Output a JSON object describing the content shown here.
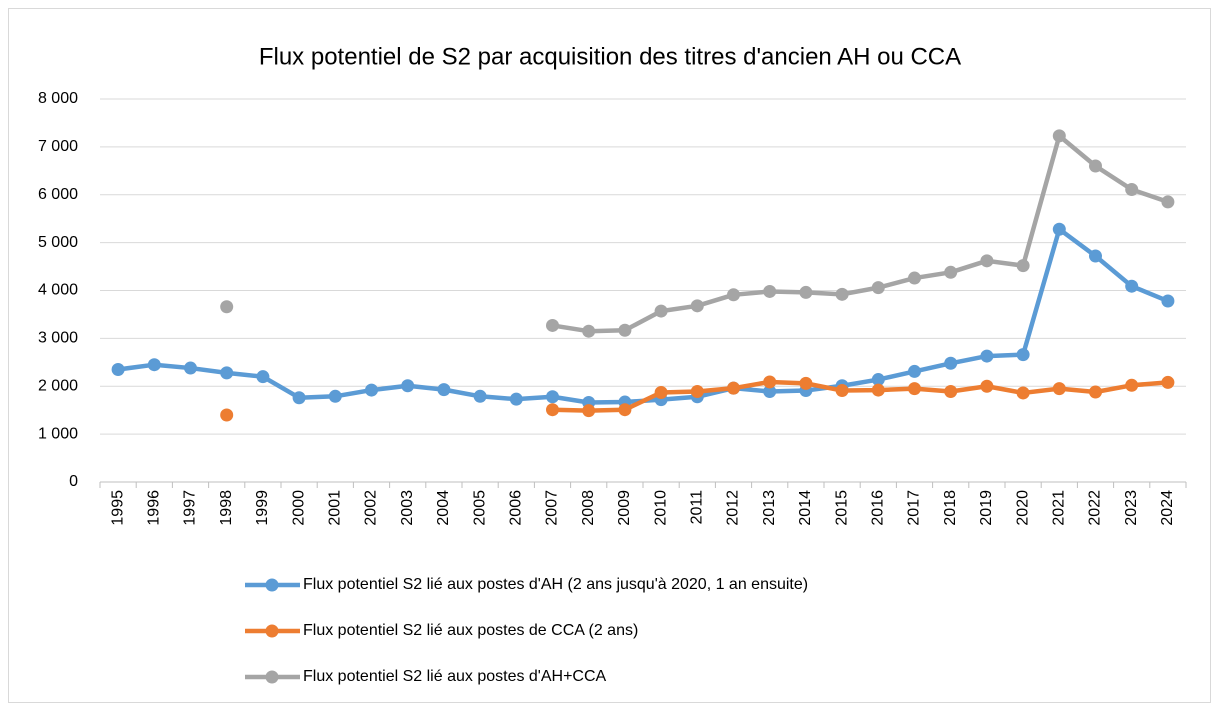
{
  "chart_data": {
    "type": "line",
    "title": "Flux potentiel de S2 par acquisition des titres d'ancien AH ou CCA",
    "categories": [
      "1995",
      "1996",
      "1997",
      "1998",
      "1999",
      "2000",
      "2001",
      "2002",
      "2003",
      "2004",
      "2005",
      "2006",
      "2007",
      "2008",
      "2009",
      "2010",
      "2011",
      "2012",
      "2013",
      "2014",
      "2015",
      "2016",
      "2017",
      "2018",
      "2019",
      "2020",
      "2021",
      "2022",
      "2023",
      "2024"
    ],
    "series": [
      {
        "name": "Flux potentiel S2 lié aux postes d'AH (2 ans jusqu'à 2020, 1 an ensuite)",
        "color": "#5b9bd5",
        "values": [
          2350,
          2450,
          2380,
          2280,
          2200,
          1760,
          1790,
          1920,
          2010,
          1930,
          1790,
          1730,
          1780,
          1660,
          1670,
          1720,
          1780,
          1960,
          1890,
          1910,
          2010,
          2140,
          2310,
          2480,
          2630,
          2660,
          5280,
          4720,
          4090,
          3780
        ]
      },
      {
        "name": "Flux potentiel S2 lié aux postes de CCA (2 ans)",
        "color": "#ed7d31",
        "values": [
          null,
          null,
          null,
          1400,
          null,
          null,
          null,
          null,
          null,
          null,
          null,
          null,
          1510,
          1490,
          1510,
          1870,
          1890,
          1960,
          2090,
          2060,
          1910,
          1920,
          1950,
          1890,
          2000,
          1860,
          1950,
          1880,
          2020,
          2080
        ]
      },
      {
        "name": "Flux potentiel S2 lié aux postes d'AH+CCA",
        "color": "#a5a5a5",
        "values": [
          null,
          null,
          null,
          3660,
          null,
          null,
          null,
          null,
          null,
          null,
          null,
          null,
          3270,
          3150,
          3170,
          3570,
          3680,
          3910,
          3980,
          3960,
          3920,
          4060,
          4260,
          4380,
          4620,
          4520,
          7230,
          6600,
          6110,
          5850
        ]
      }
    ],
    "ylim": [
      0,
      8000
    ],
    "yticks": [
      0,
      {
        "value": 1000,
        "label": "1 000"
      },
      {
        "value": 2000,
        "label": "2 000"
      },
      {
        "value": 3000,
        "label": "3 000"
      },
      {
        "value": 4000,
        "label": "4 000"
      },
      {
        "value": 5000,
        "label": "5 000"
      },
      {
        "value": 6000,
        "label": "6 000"
      },
      {
        "value": 7000,
        "label": "7 000"
      },
      {
        "value": 8000,
        "label": "8 000"
      }
    ],
    "grid": true,
    "legend": "bottom"
  }
}
